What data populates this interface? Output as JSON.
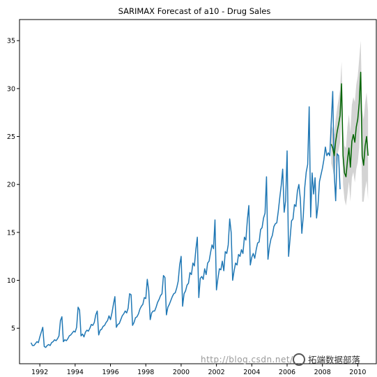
{
  "chart_data": {
    "type": "line",
    "title": "SARIMAX Forecast of a10 - Drug Sales",
    "xlabel": "",
    "ylabel": "",
    "xlim": [
      1990.85,
      2011.05
    ],
    "ylim": [
      1.3,
      37.2
    ],
    "xticks": [
      1992,
      1994,
      1996,
      1998,
      2000,
      2002,
      2004,
      2006,
      2008,
      2010
    ],
    "yticks": [
      5,
      10,
      15,
      20,
      25,
      30,
      35
    ],
    "grid": false,
    "series": [
      {
        "color": "#1f77b4",
        "x_start": 1991.5,
        "step": 0.083333,
        "values": [
          3.5,
          3.2,
          3.2,
          3.4,
          3.6,
          3.5,
          4.1,
          4.6,
          5.1,
          3.1,
          3.0,
          3.2,
          3.3,
          3.2,
          3.5,
          3.6,
          3.8,
          3.7,
          3.9,
          4.2,
          5.8,
          6.2,
          3.6,
          3.8,
          3.7,
          3.9,
          4.2,
          4.3,
          4.5,
          4.7,
          4.6,
          5.1,
          7.2,
          6.9,
          4.2,
          4.4,
          4.1,
          4.6,
          4.8,
          4.7,
          5.0,
          5.4,
          5.3,
          5.6,
          6.4,
          6.8,
          4.3,
          4.8,
          4.9,
          5.2,
          5.3,
          5.6,
          5.8,
          6.3,
          5.9,
          6.6,
          7.5,
          8.3,
          5.1,
          5.4,
          5.5,
          5.9,
          6.3,
          6.5,
          6.8,
          6.6,
          7.1,
          8.6,
          8.5,
          5.3,
          5.6,
          6.1,
          6.2,
          6.5,
          7.0,
          7.3,
          7.5,
          8.2,
          8.1,
          10.1,
          8.9,
          5.9,
          6.6,
          6.8,
          6.8,
          7.2,
          7.7,
          8.0,
          8.4,
          8.6,
          10.5,
          10.3,
          6.4,
          7.2,
          7.5,
          7.9,
          8.3,
          8.6,
          8.7,
          9.2,
          9.9,
          11.6,
          12.5,
          7.3,
          8.6,
          8.9,
          9.5,
          9.7,
          10.8,
          10.6,
          11.8,
          11.5,
          13.2,
          14.5,
          8.2,
          10.2,
          10.4,
          10.1,
          11.2,
          10.6,
          11.8,
          12.0,
          12.9,
          13.7,
          13.3,
          16.3,
          9.0,
          10.2,
          11.2,
          11.1,
          12.0,
          11.0,
          13.0,
          12.8,
          13.7,
          16.4,
          15.0,
          10.0,
          11.0,
          11.8,
          11.6,
          12.7,
          12.5,
          13.2,
          12.8,
          14.5,
          14.2,
          16.3,
          17.8,
          11.6,
          12.4,
          12.8,
          12.3,
          13.2,
          13.9,
          14.0,
          15.3,
          15.5,
          16.5,
          17.0,
          20.8,
          12.2,
          13.5,
          14.3,
          14.7,
          15.6,
          15.9,
          16.0,
          17.2,
          18.6,
          19.9,
          21.6,
          17.1,
          18.3,
          23.5,
          12.5,
          14.3,
          16.2,
          16.4,
          17.9,
          17.7,
          19.3,
          20.0,
          18.5,
          14.9,
          16.7,
          19.7,
          21.3,
          22.1,
          28.1,
          16.6,
          21.2,
          19.0,
          20.7,
          16.5,
          17.8,
          20.3,
          21.0,
          21.7,
          22.6,
          23.9,
          23.0,
          23.3,
          23.0,
          26.5,
          29.7,
          21.2,
          18.3,
          23.2,
          23.0,
          19.5
        ]
      },
      {
        "color": "#006400",
        "x_start": 2008.5,
        "step": 0.083333,
        "values": [
          24.2,
          23.8,
          23.0,
          24.5,
          25.5,
          26.3,
          27.2,
          30.5,
          23.0,
          21.2,
          20.8,
          22.5,
          23.8,
          21.8,
          24.5,
          25.2,
          24.4,
          26.0,
          26.8,
          28.5,
          31.7,
          23.0,
          22.0,
          24.0,
          25.0,
          23.0
        ]
      }
    ],
    "confidence_band": {
      "color": "#d3d3d3",
      "x_start": 2008.5,
      "step": 0.083333,
      "upper": [
        26.2,
        25.8,
        25.2,
        26.8,
        28.0,
        28.9,
        30.0,
        32.8,
        26.0,
        24.0,
        23.8,
        26.0,
        27.3,
        25.4,
        28.3,
        29.1,
        28.6,
        30.4,
        31.3,
        33.1,
        35.0,
        27.8,
        26.8,
        28.5,
        29.6,
        27.6
      ],
      "lower": [
        22.2,
        21.6,
        20.8,
        22.2,
        23.0,
        23.6,
        24.4,
        28.2,
        20.0,
        18.4,
        17.8,
        19.0,
        20.3,
        18.2,
        20.7,
        21.3,
        20.2,
        21.6,
        22.3,
        23.9,
        28.4,
        18.2,
        18.2,
        19.5,
        20.4,
        18.4
      ]
    }
  },
  "watermark": {
    "url_text": "http://blog.csdn.net/",
    "brand_text": "拓端数据部落"
  }
}
